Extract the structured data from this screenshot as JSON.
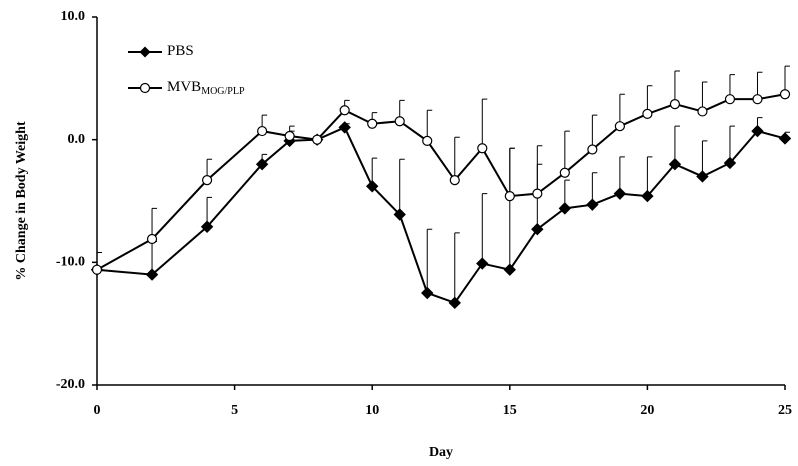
{
  "chart_data": {
    "type": "line",
    "xlabel": "Day",
    "ylabel": "% Change in Body Weight",
    "x": [
      0,
      2,
      4,
      6,
      7,
      8,
      9,
      10,
      11,
      12,
      13,
      14,
      15,
      16,
      17,
      18,
      19,
      20,
      21,
      22,
      23,
      24,
      25
    ],
    "series": [
      {
        "name": "PBS",
        "color": "#000000",
        "marker": "diamond",
        "values": [
          -10.6,
          -11.0,
          -7.1,
          -2.0,
          -0.1,
          0.0,
          1.0,
          -3.8,
          -6.1,
          -12.5,
          -13.3,
          -10.1,
          -10.6,
          -7.3,
          -5.6,
          -5.3,
          -4.4,
          -4.6,
          -2.0,
          -3.0,
          -1.9,
          0.7,
          0.1
        ],
        "errors": [
          1.4,
          2.7,
          2.4,
          0.8,
          0.8,
          0,
          0.3,
          2.3,
          4.5,
          5.2,
          5.7,
          5.7,
          9.9,
          5.3,
          2.3,
          2.6,
          3.0,
          3.2,
          3.1,
          2.9,
          3.0,
          1.1,
          0.5
        ]
      },
      {
        "name": "MVB",
        "subscript": "MOG/PLP",
        "color": "#000000",
        "marker": "circle",
        "values": [
          -10.6,
          -8.1,
          -3.3,
          0.7,
          0.3,
          0.0,
          2.4,
          1.3,
          1.5,
          -0.1,
          -3.3,
          -0.7,
          -4.6,
          -4.4,
          -2.7,
          -0.8,
          1.1,
          2.1,
          2.9,
          2.3,
          3.3,
          3.3,
          3.7
        ],
        "errors": [
          0,
          2.5,
          1.7,
          1.3,
          0.8,
          0,
          0.8,
          0.9,
          1.7,
          2.5,
          3.5,
          4.0,
          3.9,
          3.9,
          3.4,
          2.8,
          2.6,
          2.3,
          2.7,
          2.4,
          2.0,
          2.2,
          2.3
        ]
      }
    ],
    "xlim": [
      0,
      25
    ],
    "xticks": [
      0,
      5,
      10,
      15,
      20,
      25
    ],
    "ylim": [
      -20,
      10
    ],
    "yticks": [
      {
        "value": -20,
        "label": "-20.0"
      },
      {
        "value": -10,
        "label": "-10.0"
      },
      {
        "value": 0,
        "label": "0.0"
      },
      {
        "value": 10,
        "label": "10.0"
      }
    ],
    "legend": "upper left"
  }
}
